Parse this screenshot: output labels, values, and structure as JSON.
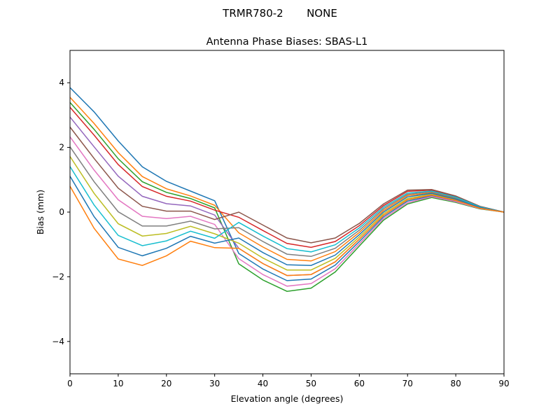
{
  "chart_data": {
    "type": "line",
    "suptitle": "TRMR780-2       NONE",
    "title": "Antenna Phase Biases: SBAS-L1",
    "xlabel": "Elevation angle (degrees)",
    "ylabel": "Bias (mm)",
    "xlim": [
      0,
      90
    ],
    "ylim": [
      -5,
      5
    ],
    "xticks": [
      0,
      10,
      20,
      30,
      40,
      50,
      60,
      70,
      80,
      90
    ],
    "yticks": [
      -4,
      -2,
      0,
      2,
      4
    ],
    "ytick_labels": [
      "−4",
      "−2",
      "0",
      "2",
      "4"
    ],
    "grid": false,
    "legend": "none",
    "colors": [
      "#1f77b4",
      "#ff7f0e",
      "#2ca02c",
      "#d62728",
      "#9467bd",
      "#8c564b",
      "#e377c2",
      "#7f7f7f",
      "#bcbd22",
      "#17becf"
    ],
    "x": [
      0,
      5,
      10,
      15,
      20,
      25,
      30,
      35,
      40,
      45,
      50,
      55,
      60,
      65,
      70,
      75,
      80,
      85,
      90
    ],
    "series": [
      {
        "values": [
          3.85,
          3.1,
          2.2,
          1.4,
          0.95,
          0.65,
          0.35,
          -1.28,
          -1.76,
          -2.12,
          -2.07,
          -1.64,
          -0.91,
          -0.15,
          0.34,
          0.5,
          0.34,
          0.12,
          0
        ]
      },
      {
        "values": [
          3.55,
          2.74,
          1.84,
          1.1,
          0.72,
          0.5,
          0.21,
          -0.64,
          -1.08,
          -1.46,
          -1.51,
          -1.22,
          -0.63,
          0.05,
          0.51,
          0.6,
          0.42,
          0.15,
          0
        ]
      },
      {
        "values": [
          3.39,
          2.56,
          1.65,
          0.94,
          0.61,
          0.42,
          0.13,
          -1.6,
          -2.1,
          -2.45,
          -2.35,
          -1.85,
          -1.05,
          -0.25,
          0.25,
          0.45,
          0.3,
          0.1,
          0
        ]
      },
      {
        "values": [
          3.24,
          2.38,
          1.47,
          0.79,
          0.49,
          0.34,
          0.06,
          -0.16,
          -0.57,
          -0.97,
          -1.09,
          -0.91,
          -0.42,
          0.2,
          0.64,
          0.68,
          0.48,
          0.17,
          0
        ]
      },
      {
        "values": [
          2.94,
          2.02,
          1.11,
          0.49,
          0.26,
          0.19,
          -0.09,
          -1.12,
          -1.59,
          -1.96,
          -1.93,
          -1.54,
          -0.84,
          -0.1,
          0.38,
          0.53,
          0.36,
          0.12,
          0
        ]
      },
      {
        "values": [
          2.63,
          1.66,
          0.74,
          0.18,
          0.03,
          0.03,
          -0.23,
          0,
          -0.4,
          -0.8,
          -0.95,
          -0.8,
          -0.35,
          0.25,
          0.68,
          0.7,
          0.5,
          0.18,
          0
        ]
      },
      {
        "values": [
          2.33,
          1.3,
          0.38,
          -0.13,
          -0.2,
          -0.13,
          -0.38,
          -1.44,
          -1.93,
          -2.29,
          -2.21,
          -1.75,
          -0.98,
          -0.2,
          0.29,
          0.48,
          0.32,
          0.11,
          0
        ]
      },
      {
        "values": [
          2.02,
          0.94,
          0.01,
          -0.43,
          -0.43,
          -0.28,
          -0.52,
          -0.48,
          -0.91,
          -1.3,
          -1.37,
          -1.12,
          -0.56,
          0.1,
          0.55,
          0.63,
          0.44,
          0.16,
          0
        ]
      },
      {
        "values": [
          1.72,
          0.58,
          -0.36,
          -0.74,
          -0.66,
          -0.44,
          -0.67,
          -0.96,
          -1.42,
          -1.79,
          -1.79,
          -1.43,
          -0.77,
          -0.05,
          0.42,
          0.55,
          0.38,
          0.13,
          0
        ]
      },
      {
        "values": [
          1.41,
          0.22,
          -0.72,
          -1.04,
          -0.89,
          -0.59,
          -0.81,
          -0.32,
          -0.74,
          -1.13,
          -1.23,
          -1.01,
          -0.49,
          0.15,
          0.59,
          0.65,
          0.46,
          0.16,
          0
        ]
      },
      {
        "values": [
          1.11,
          -0.14,
          -1.09,
          -1.35,
          -1.12,
          -0.75,
          -0.96,
          -0.8,
          -1.25,
          -1.63,
          -1.65,
          -1.33,
          -0.7,
          0,
          0.47,
          0.58,
          0.4,
          0.14,
          0
        ]
      },
      {
        "values": [
          0.8,
          -0.5,
          -1.45,
          -1.65,
          -1.35,
          -0.9,
          -1.1,
          -1.12,
          -1.59,
          -1.96,
          -1.93,
          -1.54,
          -0.84,
          -0.1,
          0.38,
          0.53,
          0.36,
          0.12,
          0
        ]
      }
    ]
  }
}
